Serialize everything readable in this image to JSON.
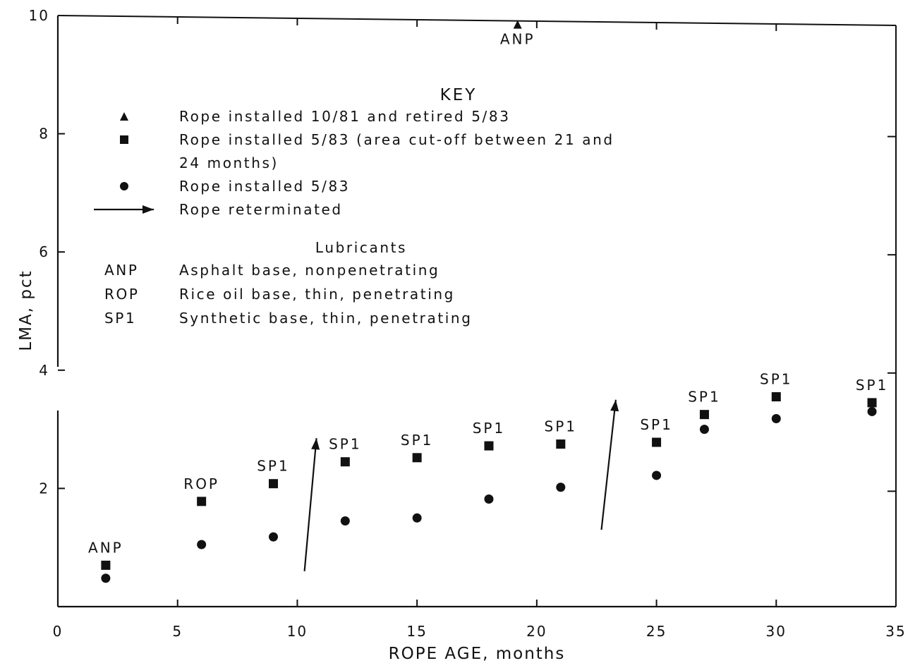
{
  "chart_data": {
    "type": "scatter",
    "xlabel": "ROPE AGE, months",
    "ylabel": "LMA, pct",
    "xlim": [
      0,
      35
    ],
    "ylim": [
      0,
      10
    ],
    "x_ticks": [
      "0",
      "5",
      "10",
      "15",
      "20",
      "25",
      "30",
      "35"
    ],
    "y_ticks": [
      "2",
      "4",
      "6",
      "8",
      "10"
    ],
    "grid": false,
    "legend_placement": "top-left",
    "series": [
      {
        "name": "Rope installed 10/81 and retired 5/83",
        "marker": "triangle",
        "points": [
          {
            "x": 19.2,
            "y": 9.85,
            "label": "ANP"
          }
        ]
      },
      {
        "name": "Rope installed 5/83 (area cut-off between 21 and 24 months)",
        "marker": "square",
        "points": [
          {
            "x": 2,
            "y": 0.7,
            "label": "ANP"
          },
          {
            "x": 6,
            "y": 1.78,
            "label": "ROP"
          },
          {
            "x": 9,
            "y": 2.08,
            "label": "SP1"
          },
          {
            "x": 12,
            "y": 2.45,
            "label": "SP1"
          },
          {
            "x": 15,
            "y": 2.52,
            "label": "SP1"
          },
          {
            "x": 18,
            "y": 2.72,
            "label": "SP1"
          },
          {
            "x": 21,
            "y": 2.75,
            "label": "SP1"
          },
          {
            "x": 25,
            "y": 2.78,
            "label": "SP1"
          },
          {
            "x": 27,
            "y": 3.25,
            "label": "SP1"
          },
          {
            "x": 30,
            "y": 3.55,
            "label": "SP1"
          },
          {
            "x": 34,
            "y": 3.45,
            "label": "SP1"
          }
        ]
      },
      {
        "name": "Rope installed 5/83",
        "marker": "circle",
        "points": [
          {
            "x": 2,
            "y": 0.48
          },
          {
            "x": 6,
            "y": 1.05
          },
          {
            "x": 9,
            "y": 1.18
          },
          {
            "x": 12,
            "y": 1.45
          },
          {
            "x": 15,
            "y": 1.5
          },
          {
            "x": 18,
            "y": 1.82
          },
          {
            "x": 21,
            "y": 2.02
          },
          {
            "x": 25,
            "y": 2.22
          },
          {
            "x": 27,
            "y": 3.0
          },
          {
            "x": 30,
            "y": 3.18
          },
          {
            "x": 34,
            "y": 3.3
          }
        ]
      }
    ],
    "reterminations": [
      {
        "from": [
          10.3,
          0.6
        ],
        "to": [
          10.8,
          2.85
        ]
      },
      {
        "from": [
          22.7,
          1.3
        ],
        "to": [
          23.3,
          3.5
        ]
      }
    ],
    "key": {
      "title": "KEY",
      "entries": [
        {
          "symbol": "triangle",
          "lines": [
            "Rope installed 10/81 and retired 5/83"
          ]
        },
        {
          "symbol": "square",
          "lines": [
            "Rope installed 5/83 (area cut-off between 21 and",
            "24 months)"
          ]
        },
        {
          "symbol": "circle",
          "lines": [
            "Rope installed 5/83"
          ]
        },
        {
          "symbol": "arrow",
          "lines": [
            "Rope reterminated"
          ]
        }
      ],
      "lubricants_title": "Lubricants",
      "lubricants": [
        {
          "code": "ANP",
          "desc": "Asphalt base, nonpenetrating"
        },
        {
          "code": "ROP",
          "desc": "Rice oil base, thin, penetrating"
        },
        {
          "code": "SP1",
          "desc": "Synthetic base, thin, penetrating"
        }
      ]
    }
  }
}
